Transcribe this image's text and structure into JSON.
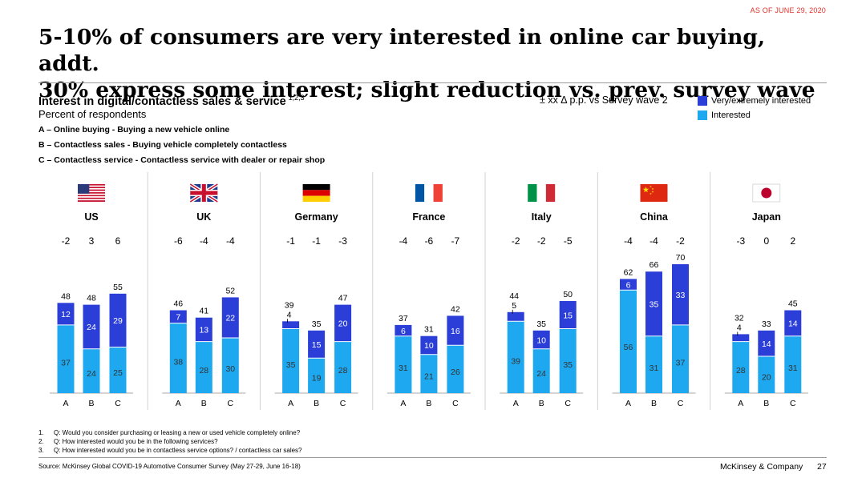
{
  "header": {
    "as_of": "AS OF JUNE 29, 2020",
    "title_line1": "5-10% of consumers are very interested in online car buying, addt.",
    "title_line2": "30% express some interest; slight reduction vs. prev. survey wave"
  },
  "intro": {
    "subhead": "Interest in digital/contactless sales & service",
    "subhead_sup": "1,2,3",
    "percent_label": "Percent of respondents",
    "definitions": [
      "A – Online buying - Buying a new vehicle online",
      "B – Contactless sales - Buying vehicle completely contactless",
      "C – Contactless service - Contactless service with dealer or repair shop"
    ],
    "delta_note": "± xx  Δ p.p. vs Survey wave 2"
  },
  "legend": [
    {
      "label": "Very/extremely interested",
      "color": "#2b3fd8"
    },
    {
      "label": "Interested",
      "color": "#1ea8ef"
    }
  ],
  "chart_data": {
    "type": "bar",
    "stacked": true,
    "categories": [
      "A",
      "B",
      "C"
    ],
    "series_names": [
      "Interested",
      "Very/extremely interested"
    ],
    "colors": {
      "interested": "#1ea8ef",
      "very": "#2b3fd8"
    },
    "groups": [
      {
        "country": "US",
        "flag": "us-flag",
        "deltas": [
          "-2",
          "3",
          "6"
        ],
        "interested": [
          37,
          24,
          25
        ],
        "very": [
          12,
          24,
          29
        ],
        "totals": [
          48,
          48,
          55
        ]
      },
      {
        "country": "UK",
        "flag": "uk-flag",
        "deltas": [
          "-6",
          "-4",
          "-4"
        ],
        "interested": [
          38,
          28,
          30
        ],
        "very": [
          7,
          13,
          22
        ],
        "totals": [
          46,
          41,
          52
        ]
      },
      {
        "country": "Germany",
        "flag": "germany-flag",
        "deltas": [
          "-1",
          "-1",
          "-3"
        ],
        "interested": [
          35,
          19,
          28
        ],
        "very": [
          4,
          15,
          20
        ],
        "totals": [
          39,
          35,
          47
        ]
      },
      {
        "country": "France",
        "flag": "france-flag",
        "deltas": [
          "-4",
          "-6",
          "-7"
        ],
        "interested": [
          31,
          21,
          26
        ],
        "very": [
          6,
          10,
          16
        ],
        "totals": [
          37,
          31,
          42
        ]
      },
      {
        "country": "Italy",
        "flag": "italy-flag",
        "deltas": [
          "-2",
          "-2",
          "-5"
        ],
        "interested": [
          39,
          24,
          35
        ],
        "very": [
          5,
          10,
          15
        ],
        "totals": [
          44,
          35,
          50
        ]
      },
      {
        "country": "China",
        "flag": "china-flag",
        "deltas": [
          "-4",
          "-4",
          "-2"
        ],
        "interested": [
          56,
          31,
          37
        ],
        "very": [
          6,
          35,
          33
        ],
        "totals": [
          62,
          66,
          70
        ]
      },
      {
        "country": "Japan",
        "flag": "japan-flag",
        "deltas": [
          "-3",
          "0",
          "2"
        ],
        "interested": [
          28,
          20,
          31
        ],
        "very": [
          4,
          14,
          14
        ],
        "totals": [
          32,
          33,
          45
        ]
      }
    ]
  },
  "footnotes": [
    {
      "num": "1.",
      "text": "Q: Would you consider purchasing or leasing a new or used vehicle completely online?"
    },
    {
      "num": "2.",
      "text": "Q: How interested would you be in the following services?"
    },
    {
      "num": "3.",
      "text": "Q: How interested would you be in contactless service options? / contactless car sales?"
    }
  ],
  "footer": {
    "source": "Source: McKinsey Global COVID-19 Automotive Consumer Survey (May 27-29, June 16-18)",
    "brand": "McKinsey & Company",
    "page": "27"
  }
}
